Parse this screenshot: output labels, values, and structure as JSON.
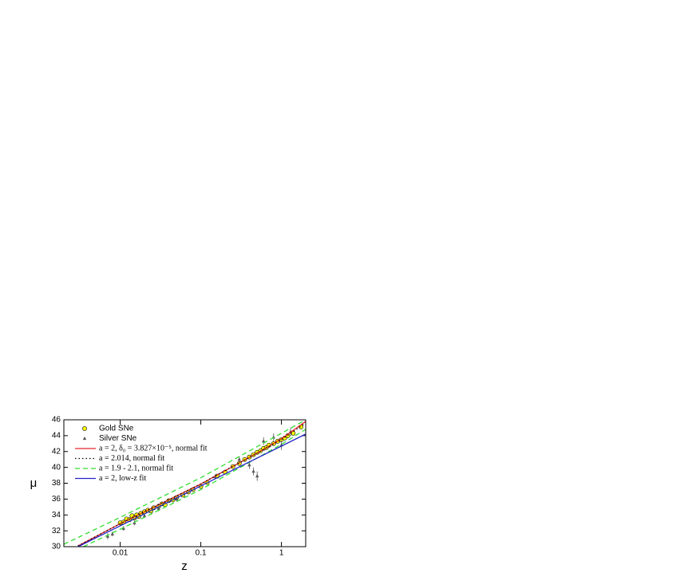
{
  "chart_data": {
    "type": "scatter",
    "x_label": "z",
    "y_label": "μ",
    "xlim": [
      0.002,
      2
    ],
    "ylim": [
      30,
      46
    ],
    "log_x": true,
    "xticks": [
      0.01,
      0.1,
      1
    ],
    "yticks": [
      30,
      32,
      34,
      36,
      38,
      40,
      42,
      44,
      46
    ],
    "legend": "upper left",
    "series": [
      {
        "name": "Gold SNe",
        "style": "markers",
        "color": "#ffff00",
        "x": [
          0.01,
          0.011,
          0.012,
          0.013,
          0.014,
          0.015,
          0.016,
          0.017,
          0.018,
          0.02,
          0.022,
          0.024,
          0.026,
          0.03,
          0.033,
          0.036,
          0.04,
          0.045,
          0.05,
          0.06,
          0.07,
          0.08,
          0.1,
          0.12,
          0.16,
          0.2,
          0.25,
          0.3,
          0.35,
          0.4,
          0.45,
          0.5,
          0.55,
          0.6,
          0.65,
          0.7,
          0.8,
          0.9,
          1.0,
          1.1,
          1.2,
          1.4,
          1.75
        ],
        "values": [
          33.0,
          33.1,
          33.5,
          33.4,
          33.9,
          33.6,
          34.0,
          33.8,
          34.2,
          34.4,
          34.6,
          34.5,
          34.9,
          35.1,
          35.4,
          35.3,
          35.8,
          35.9,
          36.2,
          36.5,
          36.9,
          37.2,
          37.6,
          38.1,
          38.9,
          39.4,
          40.1,
          40.5,
          41.0,
          41.3,
          41.6,
          41.9,
          42.1,
          42.4,
          42.5,
          42.8,
          43.0,
          43.3,
          43.5,
          43.7,
          44.0,
          44.3,
          45.1
        ]
      },
      {
        "name": "Silver SNe",
        "style": "triangles",
        "color": "#555555",
        "x": [
          0.007,
          0.008,
          0.011,
          0.015,
          0.02,
          0.03,
          0.05,
          0.15,
          0.3,
          0.4,
          0.45,
          0.5,
          0.6,
          0.8,
          1.0,
          1.3
        ],
        "values": [
          31.3,
          31.6,
          32.3,
          33.0,
          33.9,
          34.8,
          36.0,
          38.8,
          41.0,
          40.3,
          39.5,
          38.9,
          43.3,
          43.8,
          42.8,
          44.5
        ],
        "errors": [
          0.4,
          0.3,
          0.3,
          0.3,
          0.3,
          0.3,
          0.3,
          0.3,
          0.4,
          0.5,
          0.5,
          0.6,
          0.5,
          0.5,
          0.6,
          0.5
        ]
      },
      {
        "name": "a = 2, δ₀ = 3.827×10⁻⁵, normal fit",
        "style": "solid",
        "color": "#e8262b",
        "x": [
          0.003,
          0.01,
          0.1,
          0.5,
          1,
          2
        ],
        "values": [
          30.1,
          32.9,
          37.9,
          41.8,
          43.6,
          45.8
        ]
      },
      {
        "name": "a = 2.014, normal fit",
        "style": "dotted",
        "color": "#000000",
        "x": [
          0.003,
          0.01,
          0.1,
          0.5,
          1,
          2
        ],
        "values": [
          30.1,
          32.9,
          37.9,
          41.8,
          43.5,
          45.6
        ]
      },
      {
        "name": "a = 1.9 - 2.1, normal fit",
        "style": "dashed",
        "color": "#33dd33",
        "x": [
          0.002,
          0.01,
          0.1,
          1,
          2
        ],
        "values": [
          30.3,
          33.7,
          38.7,
          44.3,
          46.0
        ]
      },
      {
        "name": "a = 1.9 - 2.1, normal fit",
        "style": "dashed-nolegend",
        "color": "#33dd33",
        "x": [
          0.0035,
          0.01,
          0.1,
          1,
          2
        ],
        "values": [
          30.0,
          32.2,
          37.2,
          42.9,
          44.8
        ]
      },
      {
        "name": "a = 2, low-z fit",
        "style": "solid",
        "color": "#2323c8",
        "x": [
          0.003,
          2
        ],
        "values": [
          30.0,
          44.2
        ]
      }
    ]
  }
}
